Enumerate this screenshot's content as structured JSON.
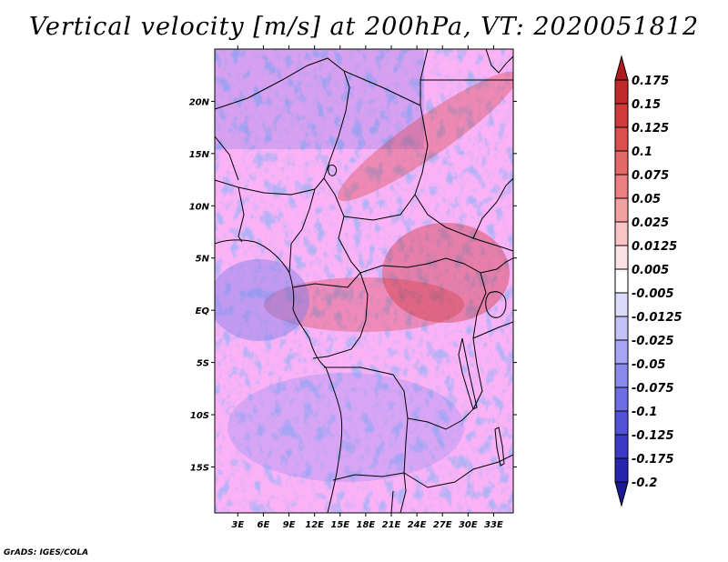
{
  "title": "Vertical velocity [m/s] at 200hPa, VT: 2020051812",
  "footer": "GrADS: IGES/COLA",
  "map": {
    "variable": "Vertical velocity",
    "units": "m/s",
    "level": "200hPa",
    "valid_time": "2020051812",
    "lon_ticks": [
      "3E",
      "6E",
      "9E",
      "12E",
      "15E",
      "18E",
      "21E",
      "24E",
      "27E",
      "30E",
      "33E"
    ],
    "lat_ticks": [
      "20N",
      "15N",
      "10N",
      "5N",
      "EQ",
      "5S",
      "10S",
      "15S"
    ],
    "lon_values": [
      3,
      6,
      9,
      12,
      15,
      18,
      21,
      24,
      27,
      30,
      33
    ],
    "lat_values": [
      20,
      15,
      10,
      5,
      0,
      -5,
      -10,
      -15
    ],
    "lon_range": [
      0.3,
      35.3
    ],
    "lat_range": [
      -19.4,
      25.0
    ]
  },
  "colorbar": {
    "labels": [
      "0.175",
      "0.15",
      "0.125",
      "0.1",
      "0.075",
      "0.05",
      "0.025",
      "0.0125",
      "0.005",
      "-0.005",
      "-0.0125",
      "-0.025",
      "-0.05",
      "-0.075",
      "-0.1",
      "-0.125",
      "-0.175",
      "-0.2"
    ],
    "colors": [
      "#b01c1c",
      "#c02a2a",
      "#d03a3a",
      "#dc4f4f",
      "#e46868",
      "#ec8080",
      "#f3a0a0",
      "#f8c4c4",
      "#fce2e2",
      "#ffffff",
      "#dcdcfa",
      "#c2c2f6",
      "#a6a6f2",
      "#8a8aec",
      "#6e6ee4",
      "#5252d6",
      "#3a3ac6",
      "#2626b0",
      "#1a1a94"
    ]
  }
}
